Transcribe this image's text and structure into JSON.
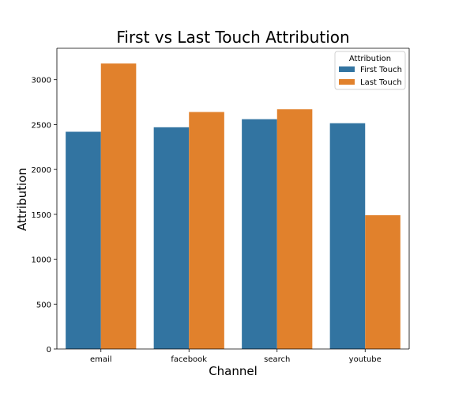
{
  "chart_data": {
    "type": "bar",
    "title": "First vs Last Touch Attribution",
    "xlabel": "Channel",
    "ylabel": "Attribution",
    "categories": [
      "email",
      "facebook",
      "search",
      "youtube"
    ],
    "series": [
      {
        "name": "First Touch",
        "color": "#3274a1",
        "values": [
          2420,
          2470,
          2560,
          2515
        ]
      },
      {
        "name": "Last Touch",
        "color": "#e1812c",
        "values": [
          3180,
          2640,
          2670,
          1490
        ]
      }
    ],
    "ylim": [
      0,
      3350
    ],
    "yticks": [
      0,
      500,
      1000,
      1500,
      2000,
      2500,
      3000
    ],
    "ytick_labels": [
      "0",
      "500",
      "1000",
      "1500",
      "2000",
      "2500",
      "3000"
    ],
    "grid": false,
    "legend": {
      "title": "Attribution",
      "placement": "top-right"
    }
  }
}
